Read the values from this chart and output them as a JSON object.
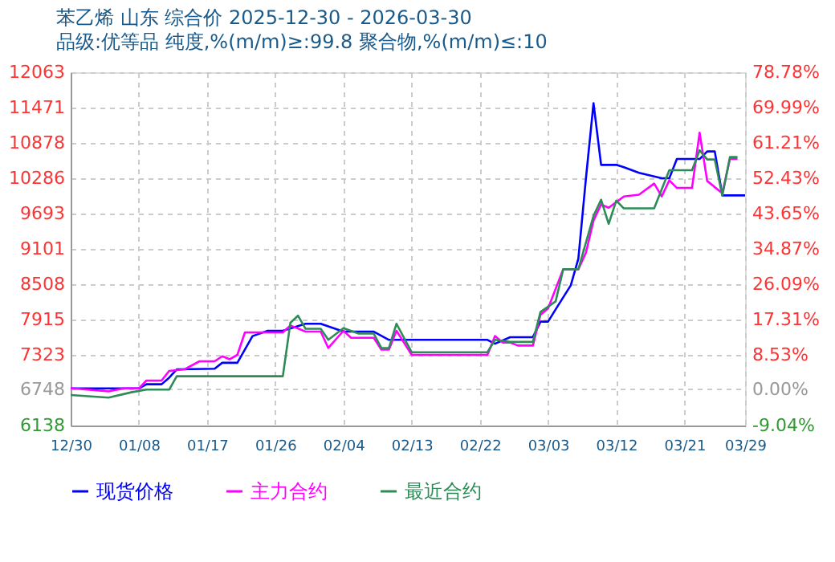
{
  "chart_data": {
    "type": "line",
    "title": "苯乙烯 山东 综合价 2025-12-30 - 2026-03-30",
    "subtitle": "品级:优等品 纯度,%(m/m)≥:99.8 聚合物,%(m/m)≤:10",
    "xlim": [
      "2025-12-30",
      "2026-03-29"
    ],
    "xticks": [
      {
        "value": "2025-12-30",
        "label": "12/30"
      },
      {
        "value": "2026-01-08",
        "label": "01/08"
      },
      {
        "value": "2026-01-17",
        "label": "01/17"
      },
      {
        "value": "2026-01-26",
        "label": "01/26"
      },
      {
        "value": "2026-02-04",
        "label": "02/04"
      },
      {
        "value": "2026-02-13",
        "label": "02/13"
      },
      {
        "value": "2026-02-22",
        "label": "02/22"
      },
      {
        "value": "2026-03-03",
        "label": "03/03"
      },
      {
        "value": "2026-03-12",
        "label": "03/12"
      },
      {
        "value": "2026-03-21",
        "label": "03/21"
      },
      {
        "value": "2026-03-29",
        "label": "03/29"
      }
    ],
    "ylim": [
      6138,
      12063
    ],
    "yticks": [
      6138,
      6748,
      7323,
      7915,
      8508,
      9101,
      9693,
      10286,
      10878,
      11471,
      12063
    ],
    "y2lim": [
      -9.04,
      78.78
    ],
    "y2ticks": [
      {
        "value": -9.04,
        "label": "-9.04%"
      },
      {
        "value": 0,
        "label": "0.00%"
      },
      {
        "value": 8.53,
        "label": "8.53%"
      },
      {
        "value": 17.31,
        "label": "17.31%"
      },
      {
        "value": 26.09,
        "label": "26.09%"
      },
      {
        "value": 34.87,
        "label": "34.87%"
      },
      {
        "value": 43.65,
        "label": "43.65%"
      },
      {
        "value": 52.43,
        "label": "52.43%"
      },
      {
        "value": 61.21,
        "label": "61.21%"
      },
      {
        "value": 69.99,
        "label": "69.99%"
      },
      {
        "value": 78.78,
        "label": "78.78%"
      }
    ],
    "grid": true,
    "legend": "bottom",
    "marker": "none",
    "line_style": "solid",
    "series": [
      {
        "name": "现货价格",
        "color": "#0000ff",
        "x": [
          "2025-12-30",
          "2026-01-08",
          "2026-01-09",
          "2026-01-11",
          "2026-01-12",
          "2026-01-13",
          "2026-01-18",
          "2026-01-19",
          "2026-01-21",
          "2026-01-23",
          "2026-01-25",
          "2026-01-27",
          "2026-01-30",
          "2026-02-01",
          "2026-02-04",
          "2026-02-08",
          "2026-02-10",
          "2026-02-23",
          "2026-02-24",
          "2026-02-26",
          "2026-03-01",
          "2026-03-02",
          "2026-03-03",
          "2026-03-04",
          "2026-03-06",
          "2026-03-07",
          "2026-03-08",
          "2026-03-09",
          "2026-03-10",
          "2026-03-12",
          "2026-03-13",
          "2026-03-15",
          "2026-03-18",
          "2026-03-19",
          "2026-03-20",
          "2026-03-23",
          "2026-03-24",
          "2026-03-25",
          "2026-03-26",
          "2026-03-29"
        ],
        "values": [
          6760,
          6760,
          6830,
          6830,
          6940,
          7080,
          7090,
          7190,
          7190,
          7638,
          7727,
          7727,
          7845,
          7845,
          7713,
          7713,
          7575,
          7575,
          7510,
          7620,
          7620,
          7880,
          7880,
          8085,
          8490,
          8938,
          10285,
          11543,
          10510,
          10510,
          10470,
          10376,
          10285,
          10285,
          10608,
          10608,
          10735,
          10735,
          9997,
          9997
        ]
      },
      {
        "name": "主力合约",
        "color": "#ff00ff",
        "x": [
          "2025-12-30",
          "2026-01-04",
          "2026-01-06",
          "2026-01-08",
          "2026-01-09",
          "2026-01-11",
          "2026-01-12",
          "2026-01-14",
          "2026-01-16",
          "2026-01-18",
          "2026-01-19",
          "2026-01-20",
          "2026-01-21",
          "2026-01-22",
          "2026-01-27",
          "2026-01-28",
          "2026-01-30",
          "2026-02-01",
          "2026-02-02",
          "2026-02-04",
          "2026-02-05",
          "2026-02-08",
          "2026-02-09",
          "2026-02-10",
          "2026-02-11",
          "2026-02-13",
          "2026-02-23",
          "2026-02-24",
          "2026-02-25",
          "2026-02-26",
          "2026-02-27",
          "2026-03-01",
          "2026-03-02",
          "2026-03-03",
          "2026-03-05",
          "2026-03-07",
          "2026-03-08",
          "2026-03-09",
          "2026-03-10",
          "2026-03-11",
          "2026-03-13",
          "2026-03-15",
          "2026-03-17",
          "2026-03-18",
          "2026-03-19",
          "2026-03-20",
          "2026-03-22",
          "2026-03-23",
          "2026-03-24",
          "2026-03-26",
          "2026-03-27",
          "2026-03-28"
        ],
        "values": [
          6765,
          6710,
          6760,
          6760,
          6892,
          6892,
          7053,
          7080,
          7215,
          7215,
          7300,
          7250,
          7323,
          7700,
          7700,
          7816,
          7713,
          7713,
          7438,
          7727,
          7610,
          7610,
          7411,
          7411,
          7727,
          7323,
          7323,
          7638,
          7530,
          7530,
          7480,
          7480,
          7996,
          8100,
          8759,
          8759,
          9037,
          9575,
          9845,
          9790,
          9980,
          10010,
          10196,
          9980,
          10250,
          10123,
          10123,
          11050,
          10240,
          10032,
          10608,
          10608
        ]
      },
      {
        "name": "最近合约",
        "color": "#2e8b57",
        "x": [
          "2025-12-30",
          "2026-01-04",
          "2026-01-07",
          "2026-01-09",
          "2026-01-12",
          "2026-01-13",
          "2026-01-27",
          "2026-01-28",
          "2026-01-29",
          "2026-01-30",
          "2026-02-01",
          "2026-02-02",
          "2026-02-04",
          "2026-02-06",
          "2026-02-08",
          "2026-02-09",
          "2026-02-10",
          "2026-02-11",
          "2026-02-13",
          "2026-02-23",
          "2026-02-24",
          "2026-02-26",
          "2026-03-01",
          "2026-03-02",
          "2026-03-04",
          "2026-03-05",
          "2026-03-07",
          "2026-03-09",
          "2026-03-10",
          "2026-03-11",
          "2026-03-12",
          "2026-03-13",
          "2026-03-17",
          "2026-03-19",
          "2026-03-22",
          "2026-03-23",
          "2026-03-24",
          "2026-03-25",
          "2026-03-26",
          "2026-03-27",
          "2026-03-28"
        ],
        "values": [
          6650,
          6605,
          6695,
          6740,
          6740,
          6965,
          6965,
          7862,
          7980,
          7760,
          7760,
          7575,
          7772,
          7680,
          7680,
          7438,
          7438,
          7845,
          7367,
          7367,
          7575,
          7540,
          7540,
          8042,
          8220,
          8759,
          8759,
          9655,
          9925,
          9520,
          9910,
          9780,
          9780,
          10420,
          10420,
          10755,
          10600,
          10600,
          9997,
          10640,
          10640
        ]
      }
    ]
  }
}
